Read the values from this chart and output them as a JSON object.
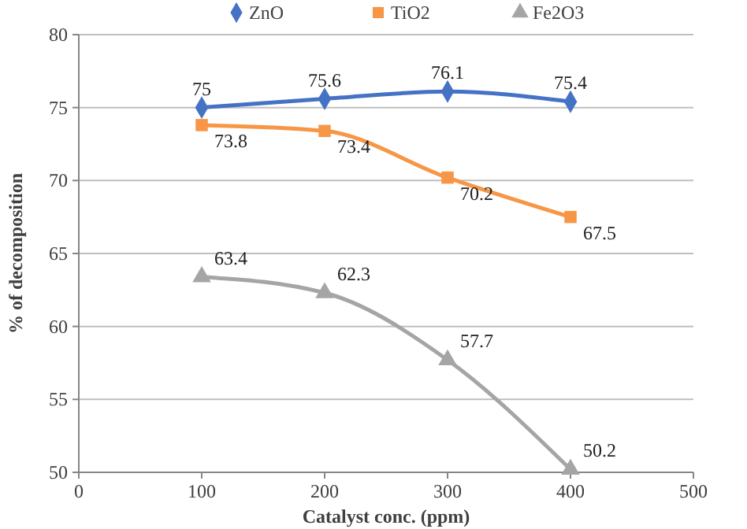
{
  "chart_data": {
    "type": "line",
    "xlabel": "Catalyst conc. (ppm)",
    "ylabel": "% of decomposition",
    "x": [
      100,
      200,
      300,
      400
    ],
    "series": [
      {
        "name": "ZnO",
        "color": "#4472c4",
        "marker": "diamond",
        "values": [
          75,
          75.6,
          76.1,
          75.4
        ]
      },
      {
        "name": "TiO2",
        "color": "#f79646",
        "marker": "square",
        "values": [
          73.8,
          73.4,
          70.2,
          67.5
        ]
      },
      {
        "name": "Fe2O3",
        "color": "#a5a5a5",
        "marker": "triangle",
        "values": [
          63.4,
          62.3,
          57.7,
          50.2
        ]
      }
    ],
    "xlim": [
      0,
      500
    ],
    "xticks": [
      0,
      100,
      200,
      300,
      400,
      500
    ],
    "ylim": [
      50,
      80
    ],
    "yticks": [
      50,
      55,
      60,
      65,
      70,
      75,
      80
    ],
    "grid": "y",
    "legend": "top",
    "data_labels": true,
    "line_style": "solid"
  }
}
